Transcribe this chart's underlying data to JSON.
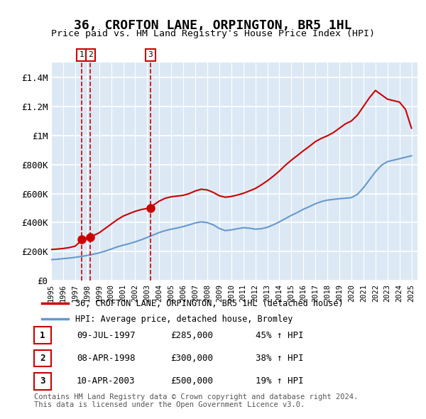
{
  "title": "36, CROFTON LANE, ORPINGTON, BR5 1HL",
  "subtitle": "Price paid vs. HM Land Registry's House Price Index (HPI)",
  "bg_color": "#dce9f5",
  "plot_bg_color": "#dce9f5",
  "ylabel_color": "#222222",
  "grid_color": "#ffffff",
  "ylim": [
    0,
    1500000
  ],
  "yticks": [
    0,
    200000,
    400000,
    600000,
    800000,
    1000000,
    1200000,
    1400000
  ],
  "ytick_labels": [
    "£0",
    "£200K",
    "£400K",
    "£600K",
    "£800K",
    "£1M",
    "£1.2M",
    "£1.4M"
  ],
  "xlim_start": 1995.0,
  "xlim_end": 2025.5,
  "xticks": [
    1995,
    1996,
    1997,
    1998,
    1999,
    2000,
    2001,
    2002,
    2003,
    2004,
    2005,
    2006,
    2007,
    2008,
    2009,
    2010,
    2011,
    2012,
    2013,
    2014,
    2015,
    2016,
    2017,
    2018,
    2019,
    2020,
    2021,
    2022,
    2023,
    2024,
    2025
  ],
  "red_line_color": "#cc0000",
  "blue_line_color": "#6699cc",
  "marker_color": "#cc0000",
  "dashed_line_color": "#cc0000",
  "legend_label_red": "36, CROFTON LANE, ORPINGTON, BR5 1HL (detached house)",
  "legend_label_blue": "HPI: Average price, detached house, Bromley",
  "transaction_markers": [
    {
      "num": 1,
      "year": 1997.53,
      "price": 285000
    },
    {
      "num": 2,
      "year": 1998.27,
      "price": 300000
    },
    {
      "num": 3,
      "year": 2003.27,
      "price": 500000
    }
  ],
  "footer_text": "Contains HM Land Registry data © Crown copyright and database right 2024.\nThis data is licensed under the Open Government Licence v3.0.",
  "table_rows": [
    {
      "num": 1,
      "date": "09-JUL-1997",
      "price": "£285,000",
      "hpi": "45% ↑ HPI"
    },
    {
      "num": 2,
      "date": "08-APR-1998",
      "price": "£300,000",
      "hpi": "38% ↑ HPI"
    },
    {
      "num": 3,
      "date": "10-APR-2003",
      "price": "£500,000",
      "hpi": "19% ↑ HPI"
    }
  ],
  "hpi_x": [
    1995.0,
    1995.5,
    1996.0,
    1996.5,
    1997.0,
    1997.5,
    1998.0,
    1998.5,
    1999.0,
    1999.5,
    2000.0,
    2000.5,
    2001.0,
    2001.5,
    2002.0,
    2002.5,
    2003.0,
    2003.5,
    2004.0,
    2004.5,
    2005.0,
    2005.5,
    2006.0,
    2006.5,
    2007.0,
    2007.5,
    2008.0,
    2008.5,
    2009.0,
    2009.5,
    2010.0,
    2010.5,
    2011.0,
    2011.5,
    2012.0,
    2012.5,
    2013.0,
    2013.5,
    2014.0,
    2014.5,
    2015.0,
    2015.5,
    2016.0,
    2016.5,
    2017.0,
    2017.5,
    2018.0,
    2018.5,
    2019.0,
    2019.5,
    2020.0,
    2020.5,
    2021.0,
    2021.5,
    2022.0,
    2022.5,
    2023.0,
    2023.5,
    2024.0,
    2024.5,
    2025.0
  ],
  "hpi_y": [
    145000,
    148000,
    152000,
    156000,
    161000,
    167000,
    174000,
    182000,
    192000,
    204000,
    218000,
    233000,
    245000,
    255000,
    268000,
    282000,
    298000,
    315000,
    332000,
    345000,
    355000,
    363000,
    373000,
    385000,
    398000,
    405000,
    400000,
    385000,
    360000,
    345000,
    350000,
    358000,
    365000,
    362000,
    355000,
    358000,
    368000,
    385000,
    405000,
    428000,
    450000,
    470000,
    492000,
    510000,
    530000,
    545000,
    555000,
    560000,
    565000,
    568000,
    572000,
    595000,
    640000,
    695000,
    750000,
    795000,
    820000,
    830000,
    840000,
    850000,
    860000
  ],
  "price_x": [
    1995.0,
    1995.5,
    1996.0,
    1996.5,
    1997.0,
    1997.3,
    1997.53,
    1997.8,
    1998.0,
    1998.27,
    1998.5,
    1999.0,
    1999.5,
    2000.0,
    2000.5,
    2001.0,
    2001.5,
    2002.0,
    2002.5,
    2003.0,
    2003.27,
    2003.5,
    2004.0,
    2004.5,
    2005.0,
    2005.5,
    2006.0,
    2006.5,
    2007.0,
    2007.5,
    2008.0,
    2008.5,
    2009.0,
    2009.5,
    2010.0,
    2010.5,
    2011.0,
    2011.5,
    2012.0,
    2012.5,
    2013.0,
    2013.5,
    2014.0,
    2014.5,
    2015.0,
    2015.5,
    2016.0,
    2016.5,
    2017.0,
    2017.5,
    2018.0,
    2018.5,
    2019.0,
    2019.5,
    2020.0,
    2020.5,
    2021.0,
    2021.5,
    2022.0,
    2022.5,
    2023.0,
    2023.5,
    2024.0,
    2024.5,
    2025.0
  ],
  "price_y": [
    215000,
    218000,
    222000,
    228000,
    238000,
    260000,
    285000,
    290000,
    295000,
    300000,
    310000,
    330000,
    360000,
    390000,
    420000,
    445000,
    462000,
    478000,
    490000,
    498000,
    500000,
    520000,
    548000,
    568000,
    578000,
    583000,
    588000,
    600000,
    618000,
    630000,
    625000,
    608000,
    585000,
    575000,
    580000,
    590000,
    602000,
    618000,
    635000,
    660000,
    688000,
    720000,
    755000,
    795000,
    830000,
    862000,
    895000,
    925000,
    958000,
    980000,
    998000,
    1020000,
    1050000,
    1080000,
    1100000,
    1140000,
    1200000,
    1260000,
    1310000,
    1280000,
    1250000,
    1240000,
    1230000,
    1180000,
    1050000
  ]
}
